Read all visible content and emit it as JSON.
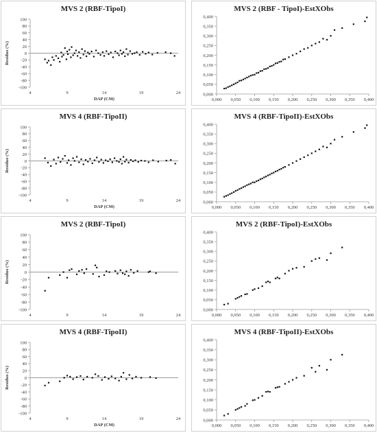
{
  "chart_data": [
    {
      "type": "scatter",
      "title": "MVS 2 (RBF-TipoI)",
      "xlabel": "DAP (CM)",
      "ylabel": "Resíduo (%)",
      "xlim": [
        4,
        24
      ],
      "ylim": [
        -100,
        100
      ],
      "xticks": [
        "4",
        "9",
        "14",
        "19",
        "24"
      ],
      "yticks": [
        "100",
        "80",
        "60",
        "40",
        "20",
        "0",
        "-20",
        "-40",
        "-60",
        "-80",
        "-100"
      ],
      "reference_line": 0,
      "x": [
        6,
        6.3,
        6.5,
        6.8,
        7,
        7.2,
        7.5,
        7.8,
        8,
        8.2,
        8.3,
        8.5,
        8.7,
        8.9,
        9,
        9.1,
        9.3,
        9.5,
        9.6,
        9.8,
        10,
        10.2,
        10.4,
        10.6,
        10.8,
        11,
        11.2,
        11.4,
        11.6,
        11.8,
        12,
        12.3,
        12.6,
        12.9,
        13.2,
        13.5,
        13.8,
        14,
        14.3,
        14.6,
        14.9,
        15.2,
        15.5,
        15.8,
        16,
        16.2,
        16.4,
        16.6,
        16.8,
        17,
        17.2,
        17.5,
        17.8,
        18.1,
        18.4,
        18.8,
        19.2,
        19.6,
        20,
        20.5,
        21.2,
        22.3,
        23,
        23.5
      ],
      "y": [
        -18,
        -28,
        -22,
        -35,
        -12,
        -20,
        -8,
        -15,
        -25,
        2,
        -10,
        -5,
        15,
        -18,
        5,
        -3,
        10,
        -12,
        18,
        -6,
        0,
        8,
        -8,
        3,
        -14,
        12,
        -4,
        6,
        -9,
        2,
        -2,
        5,
        -10,
        8,
        0,
        -5,
        3,
        -8,
        6,
        -3,
        2,
        -12,
        5,
        0,
        -6,
        8,
        -2,
        3,
        -9,
        12,
        -4,
        6,
        -2,
        0,
        3,
        -5,
        4,
        -2,
        2,
        -4,
        1,
        3,
        0,
        -8
      ]
    },
    {
      "type": "scatter",
      "title": "MVS 2 (RBF - TipoI)-EstXObs",
      "xlim": [
        0,
        0.4
      ],
      "ylim": [
        0,
        0.4
      ],
      "xticks": [
        "0,000",
        "0,050",
        "0,100",
        "0,150",
        "0,200",
        "0,250",
        "0,300",
        "0,350",
        "0,400"
      ],
      "yticks": [
        "0,400",
        "0,350",
        "0,300",
        "0,250",
        "0,200",
        "0,150",
        "0,100",
        "0,050",
        "0,000"
      ],
      "x": [
        0.02,
        0.025,
        0.03,
        0.035,
        0.04,
        0.045,
        0.05,
        0.055,
        0.06,
        0.065,
        0.07,
        0.075,
        0.08,
        0.085,
        0.09,
        0.095,
        0.1,
        0.105,
        0.11,
        0.115,
        0.12,
        0.125,
        0.13,
        0.135,
        0.14,
        0.145,
        0.15,
        0.155,
        0.16,
        0.165,
        0.17,
        0.175,
        0.18,
        0.19,
        0.2,
        0.21,
        0.22,
        0.23,
        0.24,
        0.25,
        0.26,
        0.27,
        0.28,
        0.29,
        0.3,
        0.31,
        0.33,
        0.36,
        0.39,
        0.395
      ],
      "y": [
        0.028,
        0.03,
        0.036,
        0.04,
        0.045,
        0.05,
        0.055,
        0.06,
        0.068,
        0.07,
        0.075,
        0.08,
        0.085,
        0.09,
        0.095,
        0.098,
        0.1,
        0.108,
        0.11,
        0.118,
        0.12,
        0.128,
        0.13,
        0.134,
        0.142,
        0.145,
        0.15,
        0.158,
        0.16,
        0.166,
        0.168,
        0.178,
        0.18,
        0.19,
        0.2,
        0.208,
        0.22,
        0.232,
        0.238,
        0.25,
        0.26,
        0.268,
        0.285,
        0.28,
        0.3,
        0.33,
        0.34,
        0.36,
        0.375,
        0.395
      ]
    },
    {
      "type": "scatter",
      "title": "MVS 4 (RBF-TipoII)",
      "xlabel": "DAP (CM)",
      "ylabel": "Resíduo (%)",
      "xlim": [
        4,
        24
      ],
      "ylim": [
        -100,
        100
      ],
      "xticks": [
        "4",
        "9",
        "14",
        "19",
        "24"
      ],
      "yticks": [
        "100",
        "80",
        "60",
        "40",
        "20",
        "0",
        "-20",
        "-40",
        "-60",
        "-80",
        "-100"
      ],
      "reference_line": 0,
      "x": [
        6,
        6.4,
        6.8,
        7.2,
        7.5,
        7.8,
        8.1,
        8.4,
        8.7,
        9,
        9.2,
        9.5,
        9.8,
        10,
        10.3,
        10.6,
        10.9,
        11.2,
        11.5,
        11.8,
        12.1,
        12.4,
        12.7,
        13,
        13.3,
        13.6,
        13.9,
        14.2,
        14.5,
        14.8,
        15.1,
        15.4,
        15.7,
        16,
        16.2,
        16.4,
        16.6,
        16.8,
        17,
        17.3,
        17.6,
        17.9,
        18.2,
        18.6,
        19,
        19.5,
        20,
        20.6,
        21.3,
        22.4,
        23,
        23.6
      ],
      "y": [
        8,
        -5,
        -15,
        4,
        -8,
        10,
        -3,
        6,
        15,
        -6,
        2,
        -12,
        8,
        0,
        12,
        -4,
        5,
        -10,
        3,
        -2,
        6,
        -7,
        2,
        10,
        -3,
        4,
        -6,
        2,
        -1,
        5,
        -4,
        8,
        0,
        -3,
        5,
        -8,
        12,
        -2,
        4,
        -5,
        3,
        -1,
        2,
        -3,
        1,
        0,
        -4,
        2,
        -2,
        1,
        3,
        -8
      ]
    },
    {
      "type": "scatter",
      "title": "MVS 4 (RBF-TipoII)-EstXObs",
      "xlim": [
        0,
        0.4
      ],
      "ylim": [
        0,
        0.4
      ],
      "xticks": [
        "0,000",
        "0,050",
        "0,100",
        "0,150",
        "0,200",
        "0,250",
        "0,300",
        "0,350",
        "0,400"
      ],
      "yticks": [
        "0,400",
        "0,350",
        "0,300",
        "0,250",
        "0,200",
        "0,150",
        "0,100",
        "0,050",
        "0,000"
      ],
      "x": [
        0.02,
        0.025,
        0.03,
        0.035,
        0.04,
        0.045,
        0.05,
        0.055,
        0.06,
        0.065,
        0.07,
        0.075,
        0.08,
        0.085,
        0.09,
        0.095,
        0.1,
        0.105,
        0.11,
        0.115,
        0.12,
        0.125,
        0.13,
        0.135,
        0.14,
        0.145,
        0.15,
        0.155,
        0.16,
        0.165,
        0.17,
        0.175,
        0.18,
        0.19,
        0.2,
        0.21,
        0.22,
        0.23,
        0.24,
        0.25,
        0.26,
        0.27,
        0.28,
        0.29,
        0.3,
        0.31,
        0.33,
        0.36,
        0.39,
        0.395
      ],
      "y": [
        0.026,
        0.03,
        0.034,
        0.04,
        0.044,
        0.05,
        0.056,
        0.06,
        0.066,
        0.07,
        0.076,
        0.08,
        0.086,
        0.09,
        0.094,
        0.1,
        0.1,
        0.106,
        0.11,
        0.116,
        0.12,
        0.126,
        0.13,
        0.136,
        0.14,
        0.146,
        0.15,
        0.156,
        0.16,
        0.166,
        0.17,
        0.176,
        0.18,
        0.19,
        0.2,
        0.21,
        0.22,
        0.23,
        0.24,
        0.25,
        0.26,
        0.27,
        0.285,
        0.28,
        0.3,
        0.32,
        0.335,
        0.36,
        0.38,
        0.395
      ]
    },
    {
      "type": "scatter",
      "title": "MVS 2 (RBF-TipoI)",
      "xlim": [
        4,
        24
      ],
      "ylim": [
        -100,
        100
      ],
      "xticks": [
        "4",
        "9",
        "14",
        "19",
        "24"
      ],
      "yticks": [
        "100",
        "80",
        "60",
        "40",
        "20",
        "0",
        "-20",
        "-40",
        "-60",
        "-80",
        "-100"
      ],
      "ylabel": "Resíduo (%)",
      "reference_line": 0,
      "x": [
        6,
        6.5,
        8,
        8.5,
        9,
        9.3,
        9.6,
        10.3,
        10.6,
        11,
        11.3,
        11.6,
        12.5,
        12.8,
        13,
        13.3,
        14,
        14.3,
        14.7,
        15.5,
        15.8,
        16.2,
        16.5,
        16.8,
        17,
        17.3,
        17.6,
        18,
        18.5,
        20,
        20.2,
        21
      ],
      "y": [
        -50,
        -15,
        -8,
        0,
        -15,
        5,
        8,
        -6,
        3,
        6,
        -3,
        8,
        -5,
        18,
        12,
        -12,
        -8,
        2,
        0,
        3,
        -4,
        5,
        -3,
        -6,
        2,
        -10,
        6,
        -2,
        3,
        0,
        2,
        -3
      ]
    },
    {
      "type": "scatter",
      "title": "MVS 2 (RBF-TipoI)-EstXObs",
      "xlim": [
        0,
        0.4
      ],
      "ylim": [
        0,
        0.4
      ],
      "xticks": [
        "0,000",
        "0,050",
        "0,100",
        "0,150",
        "0,200",
        "0,250",
        "0,300",
        "0,350",
        "0,400"
      ],
      "yticks": [
        "0,400",
        "0,350",
        "0,300",
        "0,250",
        "0,200",
        "0,150",
        "0,100",
        "0,050",
        "0,000"
      ],
      "x": [
        0.02,
        0.03,
        0.05,
        0.055,
        0.06,
        0.065,
        0.075,
        0.08,
        0.095,
        0.1,
        0.11,
        0.12,
        0.13,
        0.135,
        0.14,
        0.155,
        0.16,
        0.165,
        0.18,
        0.19,
        0.2,
        0.21,
        0.23,
        0.25,
        0.26,
        0.27,
        0.29,
        0.3,
        0.33
      ],
      "y": [
        0.025,
        0.03,
        0.055,
        0.06,
        0.065,
        0.07,
        0.078,
        0.08,
        0.1,
        0.105,
        0.11,
        0.12,
        0.14,
        0.145,
        0.14,
        0.16,
        0.165,
        0.16,
        0.185,
        0.2,
        0.21,
        0.215,
        0.22,
        0.25,
        0.26,
        0.265,
        0.255,
        0.29,
        0.32
      ]
    },
    {
      "type": "scatter",
      "title": "MVS 4 (RBF-TipoII)",
      "xlabel": "DAP (CM)",
      "ylabel": "Resíduo (%)",
      "xlim": [
        4,
        24
      ],
      "ylim": [
        -100,
        100
      ],
      "xticks": [
        "4",
        "9",
        "14",
        "19",
        "24"
      ],
      "yticks": [
        "100",
        "80",
        "60",
        "40",
        "20",
        "0",
        "-20",
        "-40",
        "-60",
        "-80",
        "-100"
      ],
      "reference_line": 0,
      "x": [
        6,
        6.5,
        8,
        8.6,
        9,
        9.4,
        9.8,
        10.3,
        10.8,
        11.2,
        11.7,
        12.4,
        12.8,
        13.2,
        13.7,
        14.1,
        14.6,
        15,
        15.5,
        16,
        16.3,
        16.6,
        17,
        17.4,
        17.8,
        18.3,
        19,
        20.2,
        21
      ],
      "y": [
        -22,
        -14,
        -10,
        0,
        6,
        3,
        -4,
        2,
        5,
        -5,
        3,
        0,
        10,
        5,
        -6,
        2,
        -3,
        4,
        -2,
        -8,
        3,
        14,
        -4,
        8,
        -2,
        3,
        0,
        2,
        -1
      ]
    },
    {
      "type": "scatter",
      "title": "MVS 4 (RBF-TipoII)-EstXObs",
      "xlim": [
        0,
        0.4
      ],
      "ylim": [
        0,
        0.4
      ],
      "xticks": [
        "0,000",
        "0,050",
        "0,100",
        "0,150",
        "0,200",
        "0,250",
        "0,300",
        "0,350",
        "0,400"
      ],
      "yticks": [
        "0,400",
        "0,350",
        "0,300",
        "0,250",
        "0,200",
        "0,150",
        "0,100",
        "0,050",
        "0,000"
      ],
      "x": [
        0.02,
        0.03,
        0.05,
        0.055,
        0.06,
        0.065,
        0.075,
        0.08,
        0.095,
        0.1,
        0.11,
        0.12,
        0.13,
        0.135,
        0.14,
        0.155,
        0.16,
        0.165,
        0.18,
        0.19,
        0.2,
        0.21,
        0.23,
        0.25,
        0.26,
        0.27,
        0.29,
        0.3,
        0.33
      ],
      "y": [
        0.022,
        0.03,
        0.05,
        0.055,
        0.06,
        0.065,
        0.07,
        0.08,
        0.098,
        0.1,
        0.11,
        0.12,
        0.14,
        0.142,
        0.14,
        0.16,
        0.163,
        0.165,
        0.18,
        0.19,
        0.2,
        0.21,
        0.22,
        0.26,
        0.24,
        0.27,
        0.25,
        0.3,
        0.325
      ]
    }
  ]
}
